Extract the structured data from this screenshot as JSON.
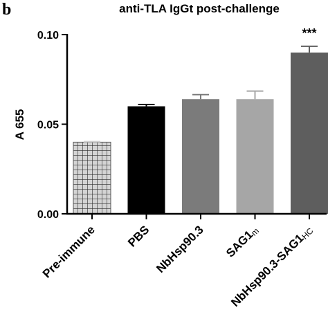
{
  "panel_label": "b",
  "chart_data": {
    "type": "bar",
    "title": "anti-TLA IgGt post-challenge",
    "ylabel": "A 655",
    "xlabel": "",
    "ylim": [
      0,
      0.1
    ],
    "yticks": [
      {
        "value": 0.0,
        "label": "0.00"
      },
      {
        "value": 0.05,
        "label": "0.05"
      },
      {
        "value": 0.1,
        "label": "0.10"
      }
    ],
    "categories": [
      {
        "main": "Pre-immune",
        "sub": ""
      },
      {
        "main": "PBS",
        "sub": ""
      },
      {
        "main": "NbHsp90.3",
        "sub": ""
      },
      {
        "main": "SAG1",
        "sub": "m"
      },
      {
        "main": "NbHsp90.3-SAG1",
        "sub": "HC"
      }
    ],
    "values": [
      0.04,
      0.06,
      0.064,
      0.064,
      0.09
    ],
    "errors": [
      0.0003,
      0.001,
      0.0025,
      0.0045,
      0.0035
    ],
    "colors": [
      "#cfcfcf",
      "#000000",
      "#7b7b7b",
      "#a6a6a6",
      "#5e5e5e"
    ],
    "patterns": [
      "grid",
      "",
      "",
      "",
      ""
    ],
    "annotations": [
      {
        "category_index": 4,
        "text": "***"
      }
    ],
    "grid": false,
    "legend": "none"
  }
}
